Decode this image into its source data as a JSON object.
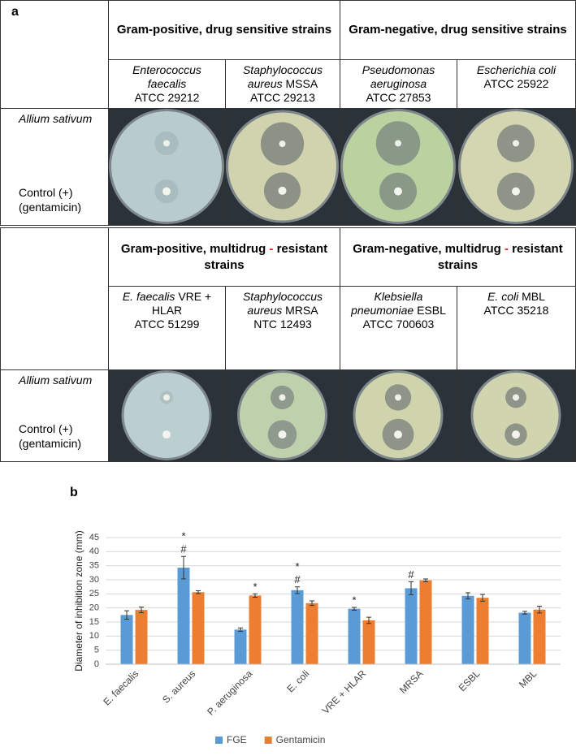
{
  "panel_a": {
    "label": "a",
    "blocks": [
      {
        "groups": [
          [
            "Gram-positive, drug sensitive strains"
          ],
          [
            "Gram-negative, drug sensitive strains"
          ]
        ],
        "strains": [
          {
            "species": "Enterococcus faecalis",
            "code": "ATCC 29212"
          },
          {
            "species": "Staphylococcus aureus",
            "tag": "MSSA",
            "code": "ATCC 29213"
          },
          {
            "species": "Pseudomonas aeruginosa",
            "code": "ATCC 27853"
          },
          {
            "species": "Escherichia coli",
            "code": "ATCC 25922"
          }
        ],
        "row_labels": [
          "Allium sativum",
          "Control (+) (gentamicin)"
        ]
      },
      {
        "groups": [
          [
            "Gram-positive, multidrug",
            "-",
            "resistant strains"
          ],
          [
            "Gram-negative, multidrug",
            "-",
            "resistant strains"
          ]
        ],
        "strains": [
          {
            "species": "E. faecalis",
            "tag": "VRE + HLAR",
            "code": "ATCC 51299"
          },
          {
            "species": "Staphylococcus aureus",
            "tag": "MRSA",
            "code": "NTC 12493"
          },
          {
            "species": "Klebsiella pneumoniae",
            "tag": "ESBL",
            "code": "ATCC 700603"
          },
          {
            "species": "E. coli",
            "tag": "MBL",
            "code": "ATCC 35218"
          }
        ],
        "row_labels": [
          "Allium sativum",
          "Control (+) (gentamicin)"
        ]
      }
    ]
  },
  "chart_data": {
    "type": "bar",
    "panel_label": "b",
    "y_label": "Diameter of inhibition zone (mm)",
    "categories": [
      "E. faecalis",
      "S. aureus",
      "P. aeruginosa",
      "E. coli",
      "VRE + HLAR",
      "MRSA",
      "ESBL",
      "MBL"
    ],
    "series": [
      {
        "name": "FGE",
        "color": "#5b9bd5",
        "values": [
          17.5,
          34.3,
          12.3,
          26.3,
          19.7,
          27,
          24.3,
          18.3
        ],
        "errors": [
          1.5,
          4,
          0.6,
          1.2,
          0.5,
          2.3,
          1.1,
          0.5
        ],
        "annotations": [
          null,
          [
            "#",
            "*"
          ],
          null,
          [
            "#",
            "*"
          ],
          [
            "*"
          ],
          [
            "#"
          ],
          null,
          null
        ]
      },
      {
        "name": "Gentamicin",
        "color": "#ed7d31",
        "values": [
          19.3,
          25.6,
          24.4,
          21.7,
          15.6,
          29.8,
          23.6,
          19.4
        ],
        "errors": [
          1,
          0.5,
          0.6,
          0.8,
          1.1,
          0.5,
          1.2,
          1.2
        ],
        "annotations": [
          null,
          null,
          [
            "*"
          ],
          null,
          null,
          null,
          null,
          null
        ]
      }
    ],
    "ylim": [
      0,
      45
    ],
    "yticks": [
      0,
      5,
      10,
      15,
      20,
      25,
      30,
      35,
      40,
      45
    ],
    "grid": true,
    "legend": "bottom"
  }
}
